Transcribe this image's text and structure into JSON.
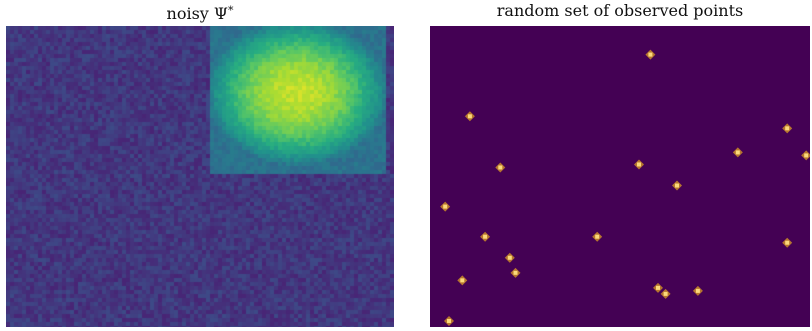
{
  "figure": {
    "left_panel": {
      "title_main": "noisy Ψ",
      "title_superscript": "*"
    },
    "right_panel": {
      "title": "random set of observed points"
    }
  },
  "chart_data": [
    {
      "type": "heatmap",
      "title": "noisy Ψ*",
      "colormap": "viridis",
      "background_level": 0.18,
      "background_noise": 0.05,
      "hot_region": {
        "x_range": [
          0.52,
          0.97
        ],
        "y_range": [
          0.0,
          0.49
        ],
        "center_level": 0.92,
        "edge_level": 0.38
      }
    },
    {
      "type": "heatmap",
      "title": "random set of observed points",
      "colormap": "magma",
      "background_level": 0.0,
      "observed_points": [
        {
          "x": 0.58,
          "y": 0.095
        },
        {
          "x": 0.105,
          "y": 0.3
        },
        {
          "x": 0.94,
          "y": 0.34
        },
        {
          "x": 0.81,
          "y": 0.42
        },
        {
          "x": 0.99,
          "y": 0.43
        },
        {
          "x": 0.185,
          "y": 0.47
        },
        {
          "x": 0.55,
          "y": 0.46
        },
        {
          "x": 0.65,
          "y": 0.53
        },
        {
          "x": 0.04,
          "y": 0.6
        },
        {
          "x": 0.145,
          "y": 0.7
        },
        {
          "x": 0.44,
          "y": 0.7
        },
        {
          "x": 0.94,
          "y": 0.72
        },
        {
          "x": 0.21,
          "y": 0.77
        },
        {
          "x": 0.225,
          "y": 0.82
        },
        {
          "x": 0.085,
          "y": 0.845
        },
        {
          "x": 0.6,
          "y": 0.87
        },
        {
          "x": 0.62,
          "y": 0.89
        },
        {
          "x": 0.705,
          "y": 0.88
        },
        {
          "x": 0.05,
          "y": 0.98
        }
      ]
    }
  ]
}
